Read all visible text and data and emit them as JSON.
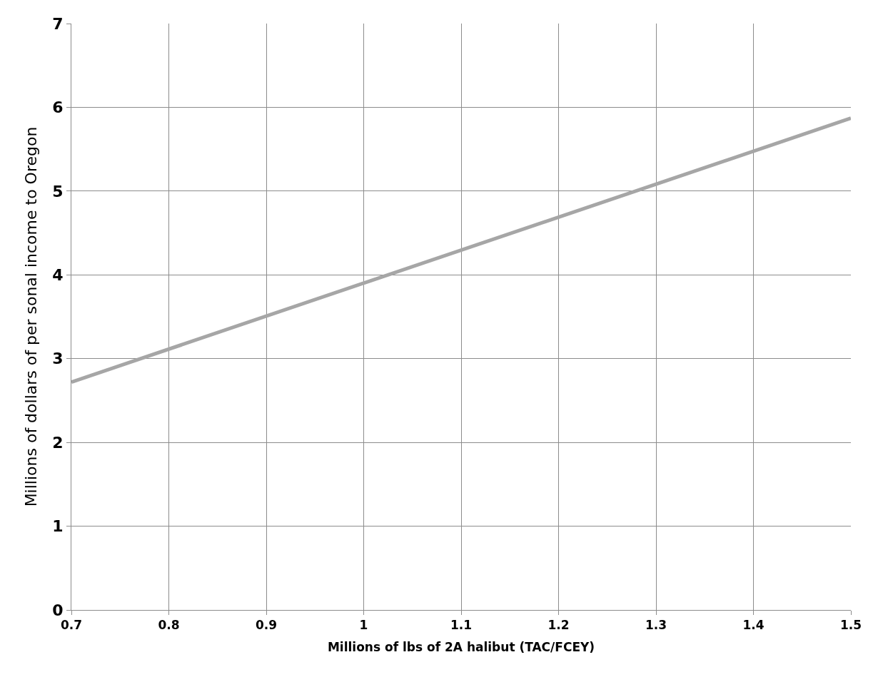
{
  "chart_data": {
    "type": "line",
    "xlabel": "Millions of lbs of 2A halibut (TAC/FCEY)",
    "ylabel": "Millions of dollars of per sonal income to Oregon",
    "x": [
      0.7,
      1.5
    ],
    "series": [
      {
        "color": "#a6a6a6",
        "values": [
          2.72,
          5.87
        ]
      }
    ],
    "xlim": [
      0.7,
      1.5
    ],
    "xticks": [
      0.7,
      0.8,
      0.9,
      1,
      1.1,
      1.2,
      1.3,
      1.4,
      1.5
    ],
    "ylim": [
      0,
      7
    ],
    "yticks": [
      0,
      1,
      2,
      3,
      4,
      5,
      6,
      7
    ],
    "grid": true,
    "marker": "none",
    "line_style": "solid"
  }
}
